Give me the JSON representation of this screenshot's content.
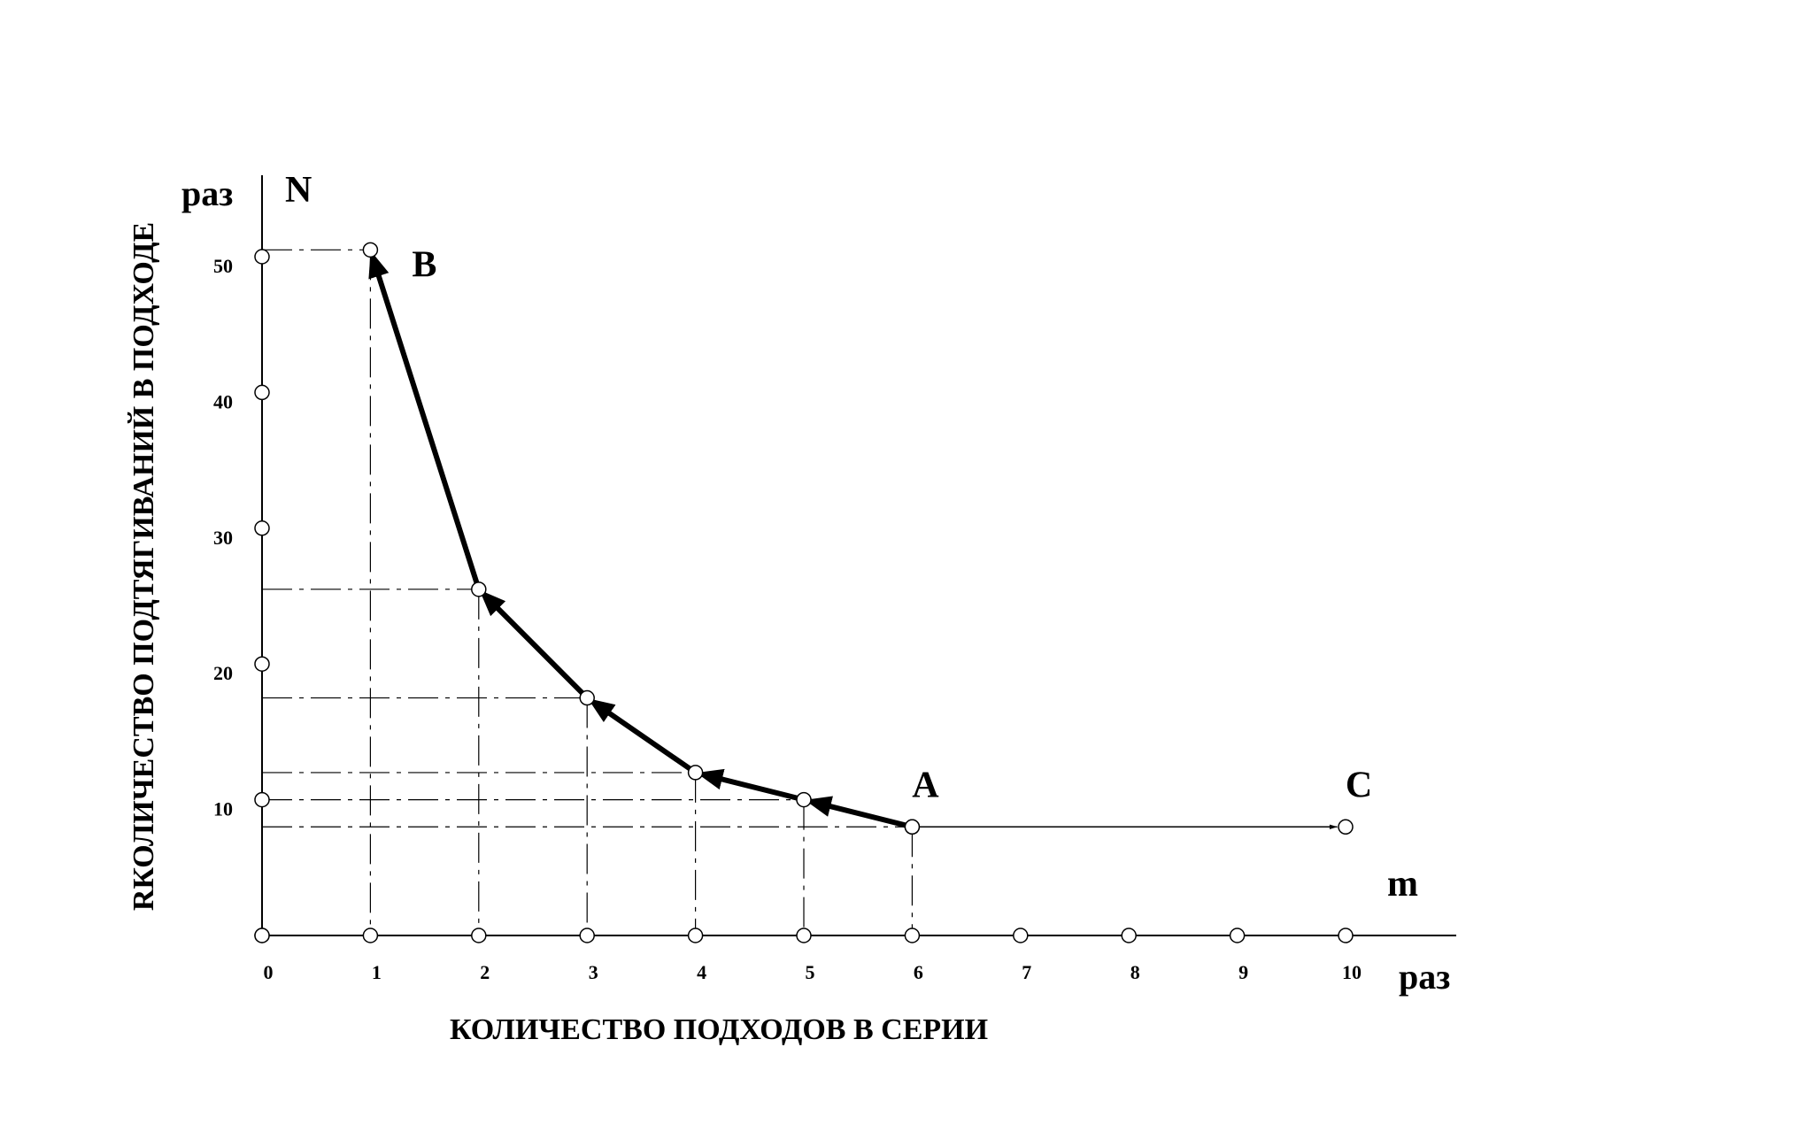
{
  "chart_data": {
    "type": "line",
    "title": "",
    "xlabel": "КОЛИЧЕСТВО ПОДХОДОВ В СЕРИИ",
    "ylabel": "RКОЛИЧЕСТВО ПОДТЯГИВАНИЙ В ПОДХОДЕ",
    "x_axis_symbol": "m",
    "y_axis_symbol": "N",
    "x_unit": "раз",
    "y_unit": "раз",
    "xlim": [
      0,
      10
    ],
    "ylim": [
      0,
      50
    ],
    "x_ticks": [
      "0",
      "1",
      "2",
      "3",
      "4",
      "5",
      "6",
      "7",
      "8",
      "9",
      "10"
    ],
    "y_ticks": [
      {
        "value": 10,
        "label": "10"
      },
      {
        "value": 20,
        "label": "20"
      },
      {
        "value": 30,
        "label": "30"
      },
      {
        "value": 40,
        "label": "40"
      },
      {
        "value": 50,
        "label": "50"
      }
    ],
    "grid": false,
    "series": [
      {
        "x": [
          6,
          5,
          4,
          3,
          2,
          1
        ],
        "y": [
          8,
          10,
          12,
          17.5,
          25.5,
          50.5
        ],
        "line": "thick",
        "arrows": "toward-decreasing-x"
      },
      {
        "x": [
          6,
          10
        ],
        "y": [
          8,
          8
        ],
        "line": "thin",
        "arrows": "toward-increasing-x"
      }
    ],
    "point_labels": [
      {
        "label": "A",
        "x": 6,
        "y": 8
      },
      {
        "label": "B",
        "x": 1,
        "y": 50.5
      },
      {
        "label": "C",
        "x": 10,
        "y": 8
      }
    ],
    "projection_lines": "dash-dot from each curve point to both axes"
  }
}
